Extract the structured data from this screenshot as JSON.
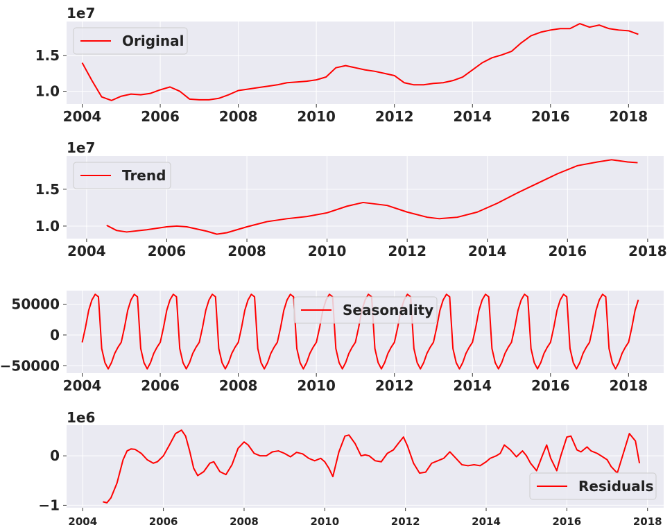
{
  "chart_data": [
    {
      "type": "line",
      "y_multiplier": "1e7",
      "legend": "top-left",
      "grid": true,
      "xlim": [
        2003.6,
        2018.9
      ],
      "ylim": [
        0.82,
        1.98
      ],
      "x_ticks": [
        2004,
        2006,
        2008,
        2010,
        2012,
        2014,
        2016,
        2018
      ],
      "x_tick_labels": [
        "2004",
        "2006",
        "2008",
        "2010",
        "2012",
        "2014",
        "2016",
        "2018"
      ],
      "y_ticks": [
        1.0,
        1.5
      ],
      "y_tick_labels": [
        "1.0",
        "1.5"
      ],
      "color": "#ff0000",
      "series": [
        {
          "name": "Original",
          "x": [
            2004.0,
            2004.25,
            2004.5,
            2004.75,
            2005.0,
            2005.25,
            2005.5,
            2005.75,
            2006.0,
            2006.25,
            2006.5,
            2006.75,
            2007.0,
            2007.25,
            2007.5,
            2007.75,
            2008.0,
            2008.25,
            2008.5,
            2008.75,
            2009.0,
            2009.25,
            2009.5,
            2009.75,
            2010.0,
            2010.25,
            2010.5,
            2010.75,
            2011.0,
            2011.25,
            2011.5,
            2011.75,
            2012.0,
            2012.25,
            2012.5,
            2012.75,
            2013.0,
            2013.25,
            2013.5,
            2013.75,
            2014.0,
            2014.25,
            2014.5,
            2014.75,
            2015.0,
            2015.25,
            2015.5,
            2015.75,
            2016.0,
            2016.25,
            2016.5,
            2016.75,
            2017.0,
            2017.25,
            2017.5,
            2017.75,
            2018.0,
            2018.25
          ],
          "values": [
            1.4,
            1.15,
            0.92,
            0.87,
            0.93,
            0.96,
            0.95,
            0.97,
            1.02,
            1.06,
            1.0,
            0.89,
            0.88,
            0.88,
            0.9,
            0.95,
            1.01,
            1.03,
            1.05,
            1.07,
            1.09,
            1.12,
            1.13,
            1.14,
            1.16,
            1.2,
            1.33,
            1.36,
            1.33,
            1.3,
            1.28,
            1.25,
            1.22,
            1.12,
            1.09,
            1.09,
            1.11,
            1.12,
            1.15,
            1.2,
            1.3,
            1.4,
            1.47,
            1.51,
            1.56,
            1.68,
            1.78,
            1.83,
            1.86,
            1.88,
            1.88,
            1.95,
            1.9,
            1.93,
            1.88,
            1.86,
            1.85,
            1.8
          ]
        }
      ]
    },
    {
      "type": "line",
      "y_multiplier": "1e7",
      "legend": "top-left",
      "grid": true,
      "xlim": [
        2003.5,
        2018.4
      ],
      "ylim": [
        0.83,
        1.95
      ],
      "x_ticks": [
        2004,
        2006,
        2008,
        2010,
        2012,
        2014,
        2016,
        2018
      ],
      "x_tick_labels": [
        "2004",
        "2006",
        "2008",
        "2010",
        "2012",
        "2014",
        "2016",
        "2018"
      ],
      "y_ticks": [
        1.0,
        1.5
      ],
      "y_tick_labels": [
        "1.0",
        "1.5"
      ],
      "color": "#ff0000",
      "series": [
        {
          "name": "Trend",
          "x": [
            2004.5,
            2004.75,
            2005.0,
            2005.5,
            2006.0,
            2006.25,
            2006.5,
            2007.0,
            2007.25,
            2007.5,
            2008.0,
            2008.5,
            2009.0,
            2009.5,
            2010.0,
            2010.5,
            2010.9,
            2011.5,
            2012.0,
            2012.5,
            2012.8,
            2013.25,
            2013.75,
            2014.25,
            2014.75,
            2015.25,
            2015.75,
            2016.25,
            2016.75,
            2017.1,
            2017.5,
            2017.75
          ],
          "values": [
            1.01,
            0.94,
            0.92,
            0.95,
            0.99,
            1.0,
            0.99,
            0.93,
            0.89,
            0.91,
            0.99,
            1.06,
            1.1,
            1.13,
            1.18,
            1.27,
            1.32,
            1.28,
            1.19,
            1.12,
            1.1,
            1.12,
            1.19,
            1.31,
            1.45,
            1.58,
            1.71,
            1.82,
            1.87,
            1.9,
            1.87,
            1.86
          ]
        }
      ]
    },
    {
      "type": "line",
      "legend": "top-center",
      "grid": true,
      "xlim": [
        2003.6,
        2018.9
      ],
      "ylim": [
        -62000,
        72000
      ],
      "x_ticks": [
        2004,
        2006,
        2008,
        2010,
        2012,
        2014,
        2016,
        2018
      ],
      "x_tick_labels": [
        "2004",
        "2006",
        "2008",
        "2010",
        "2012",
        "2014",
        "2016",
        "2018"
      ],
      "y_ticks": [
        -50000,
        0,
        50000
      ],
      "y_tick_labels": [
        "−50000",
        "0",
        "50000"
      ],
      "color": "#ff0000",
      "series": [
        {
          "name": "Seasonality",
          "monthly_pattern": [
            -12000,
            12000,
            40000,
            57000,
            66000,
            62000,
            -22000,
            -45000,
            -55000,
            -45000,
            -30000,
            -20000
          ],
          "start_year": 2004.0,
          "end_year": 2018.25
        }
      ]
    },
    {
      "type": "line",
      "y_multiplier": "1e6",
      "legend": "bottom-right",
      "grid": true,
      "xlim": [
        2003.6,
        2018.4
      ],
      "ylim": [
        -1.05,
        0.62
      ],
      "x_ticks": [
        2004,
        2006,
        2008,
        2010,
        2012,
        2014,
        2016,
        2018
      ],
      "x_tick_labels": [
        "2004",
        "2006",
        "2008",
        "2010",
        "2012",
        "2014",
        "2016",
        "2018"
      ],
      "y_ticks": [
        -1,
        0
      ],
      "y_tick_labels": [
        "−1",
        "0"
      ],
      "color": "#ff0000",
      "series": [
        {
          "name": "Residuals",
          "x": [
            2004.5,
            2004.6,
            2004.7,
            2004.85,
            2005.0,
            2005.1,
            2005.2,
            2005.3,
            2005.45,
            2005.6,
            2005.75,
            2005.85,
            2006.0,
            2006.15,
            2006.3,
            2006.45,
            2006.55,
            2006.65,
            2006.75,
            2006.85,
            2007.0,
            2007.15,
            2007.25,
            2007.4,
            2007.55,
            2007.7,
            2007.85,
            2008.0,
            2008.1,
            2008.25,
            2008.4,
            2008.55,
            2008.7,
            2008.85,
            2009.0,
            2009.15,
            2009.3,
            2009.45,
            2009.6,
            2009.75,
            2009.9,
            2010.0,
            2010.1,
            2010.2,
            2010.35,
            2010.5,
            2010.6,
            2010.75,
            2010.9,
            2011.0,
            2011.1,
            2011.25,
            2011.4,
            2011.55,
            2011.7,
            2011.85,
            2011.95,
            2012.05,
            2012.2,
            2012.35,
            2012.5,
            2012.65,
            2012.8,
            2012.95,
            2013.1,
            2013.25,
            2013.4,
            2013.55,
            2013.7,
            2013.85,
            2014.0,
            2014.1,
            2014.25,
            2014.35,
            2014.45,
            2014.6,
            2014.75,
            2014.9,
            2015.0,
            2015.1,
            2015.25,
            2015.4,
            2015.5,
            2015.6,
            2015.75,
            2015.85,
            2016.0,
            2016.1,
            2016.25,
            2016.35,
            2016.5,
            2016.6,
            2016.75,
            2016.85,
            2017.0,
            2017.1,
            2017.25,
            2017.4,
            2017.55,
            2017.7,
            2017.8
          ],
          "values": [
            -0.93,
            -0.95,
            -0.85,
            -0.55,
            -0.08,
            0.1,
            0.14,
            0.13,
            0.05,
            -0.08,
            -0.15,
            -0.12,
            0.0,
            0.22,
            0.45,
            0.52,
            0.4,
            0.1,
            -0.25,
            -0.4,
            -0.32,
            -0.15,
            -0.12,
            -0.32,
            -0.38,
            -0.18,
            0.15,
            0.28,
            0.22,
            0.05,
            0.0,
            0.0,
            0.08,
            0.1,
            0.05,
            -0.02,
            0.07,
            0.04,
            -0.05,
            -0.1,
            -0.05,
            -0.12,
            -0.25,
            -0.42,
            0.08,
            0.4,
            0.42,
            0.25,
            0.0,
            0.02,
            0.0,
            -0.1,
            -0.12,
            0.05,
            0.12,
            0.28,
            0.38,
            0.2,
            -0.15,
            -0.35,
            -0.33,
            -0.15,
            -0.1,
            -0.05,
            0.08,
            -0.05,
            -0.18,
            -0.2,
            -0.18,
            -0.2,
            -0.12,
            -0.05,
            0.0,
            0.05,
            0.22,
            0.12,
            -0.02,
            0.1,
            0.0,
            -0.15,
            -0.3,
            0.02,
            0.22,
            -0.05,
            -0.3,
            0.0,
            0.38,
            0.4,
            0.12,
            0.08,
            0.18,
            0.1,
            0.05,
            0.0,
            -0.08,
            -0.22,
            -0.35,
            0.05,
            0.45,
            0.3,
            -0.15
          ]
        }
      ]
    }
  ]
}
